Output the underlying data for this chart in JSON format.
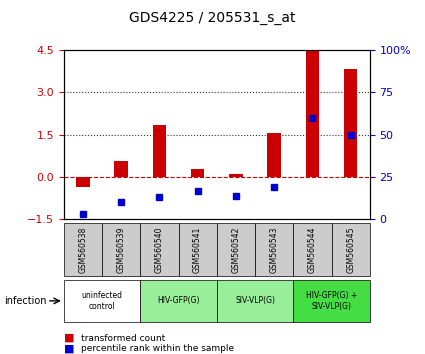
{
  "title": "GDS4225 / 205531_s_at",
  "samples": [
    "GSM560538",
    "GSM560539",
    "GSM560540",
    "GSM560541",
    "GSM560542",
    "GSM560543",
    "GSM560544",
    "GSM560545"
  ],
  "transformed_count": [
    -0.35,
    0.55,
    1.85,
    0.28,
    0.12,
    1.55,
    4.45,
    3.8
  ],
  "percentile_rank": [
    3.0,
    10.0,
    13.0,
    17.0,
    14.0,
    19.0,
    60.0,
    50.0
  ],
  "ylim_left": [
    -1.5,
    4.5
  ],
  "ylim_right": [
    0,
    100
  ],
  "yticks_left": [
    -1.5,
    0,
    1.5,
    3,
    4.5
  ],
  "yticks_right": [
    0,
    25,
    50,
    75,
    100
  ],
  "bar_color": "#cc0000",
  "dot_color": "#0000cc",
  "bar_width": 0.35,
  "infection_groups": [
    {
      "label": "uninfected\ncontrol",
      "start": 0,
      "end": 2,
      "color": "#ffffff"
    },
    {
      "label": "HIV-GFP(G)",
      "start": 2,
      "end": 4,
      "color": "#99ee99"
    },
    {
      "label": "SIV-VLP(G)",
      "start": 4,
      "end": 6,
      "color": "#99ee99"
    },
    {
      "label": "HIV-GFP(G) +\nSIV-VLP(G)",
      "start": 6,
      "end": 8,
      "color": "#44dd44"
    }
  ],
  "gsm_row_color": "#cccccc",
  "legend_bar_label": "transformed count",
  "legend_dot_label": "percentile rank within the sample",
  "infection_label": "infection",
  "right_axis_color": "#0000cc",
  "left_axis_color": "#cc0000",
  "zero_line_color": "#cc0000",
  "dotted_line_color": "#333333",
  "dotted_lines": [
    1.5,
    3.0
  ]
}
